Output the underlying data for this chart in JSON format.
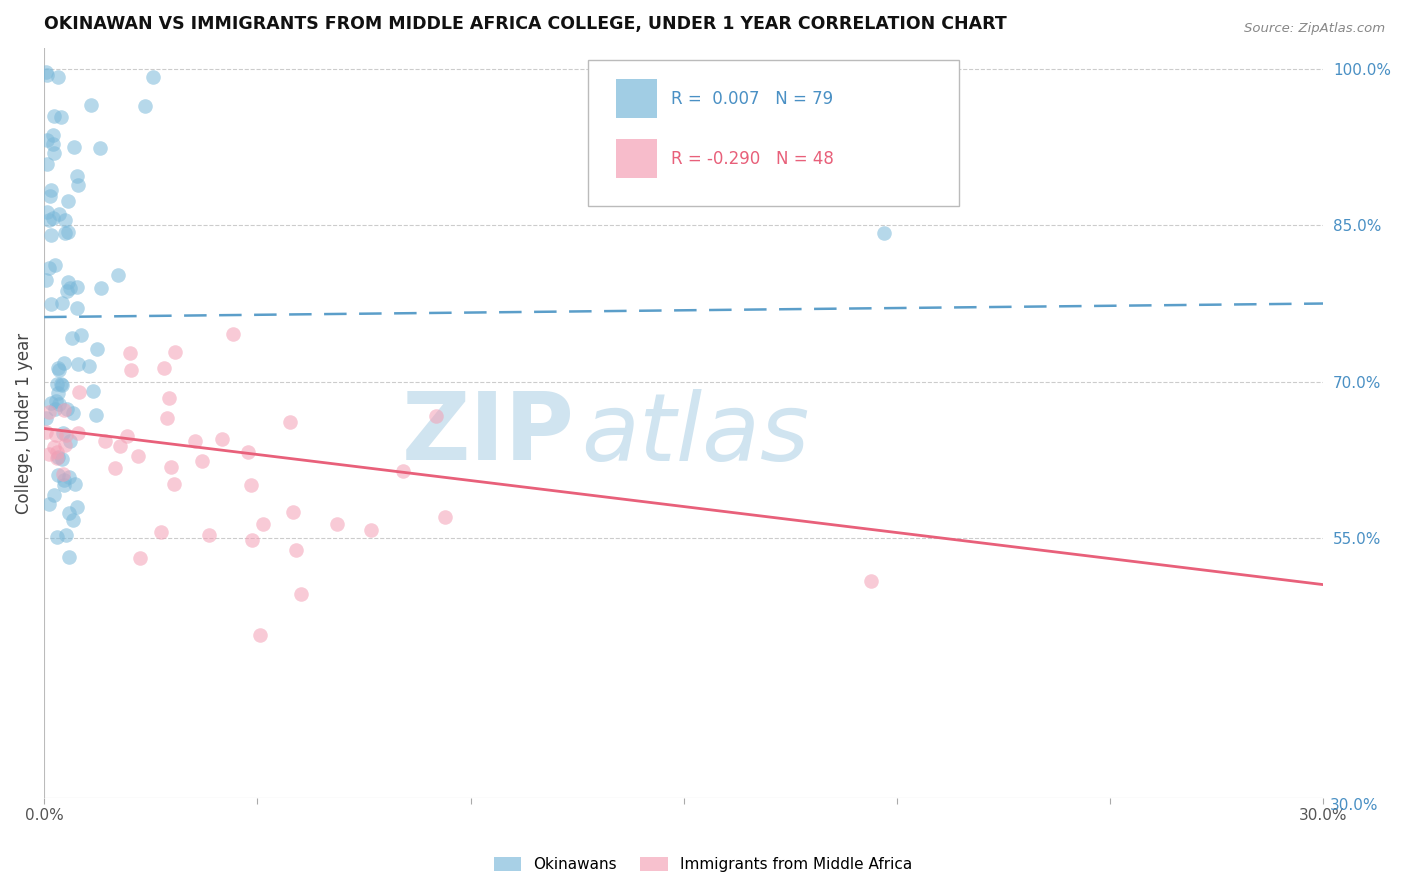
{
  "title": "OKINAWAN VS IMMIGRANTS FROM MIDDLE AFRICA COLLEGE, UNDER 1 YEAR CORRELATION CHART",
  "source": "Source: ZipAtlas.com",
  "ylabel": "College, Under 1 year",
  "xlim": [
    0.0,
    0.3
  ],
  "ylim": [
    0.3,
    1.02
  ],
  "yticks_right": [
    1.0,
    0.85,
    0.7,
    0.55
  ],
  "ytick_labels_right": [
    "100.0%",
    "85.0%",
    "70.0%",
    "55.0%"
  ],
  "blue_R": "0.007",
  "blue_N": "79",
  "pink_R": "-0.290",
  "pink_N": "48",
  "blue_color": "#7ab8d9",
  "pink_color": "#f4a0b5",
  "blue_line_color": "#5b9ec9",
  "pink_line_color": "#e8607a",
  "grid_color": "#cccccc",
  "watermark_color": "#d0e4f0",
  "blue_trend_x": [
    0.0,
    0.3
  ],
  "blue_trend_y": [
    0.762,
    0.775
  ],
  "pink_trend_x": [
    0.0,
    0.3
  ],
  "pink_trend_y": [
    0.655,
    0.505
  ],
  "legend_R1": "R =  0.007",
  "legend_N1": "N = 79",
  "legend_R2": "R = -0.290",
  "legend_N2": "N = 48",
  "legend_label1": "Okinawans",
  "legend_label2": "Immigrants from Middle Africa"
}
